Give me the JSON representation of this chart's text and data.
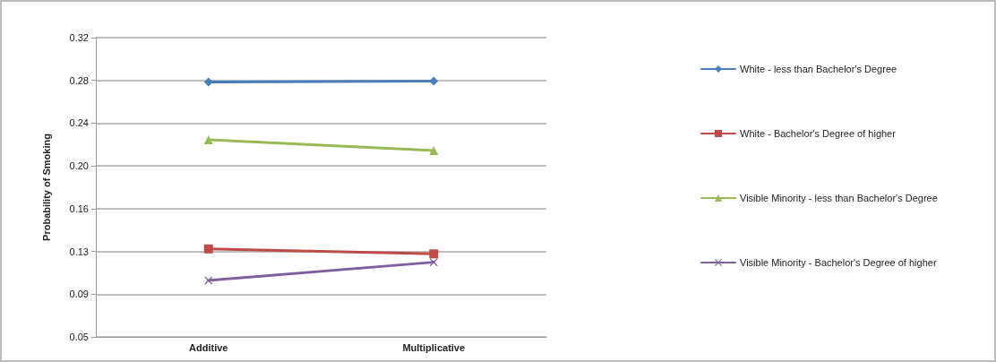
{
  "chart_data": {
    "type": "line",
    "ylabel": "Probability of Smoking",
    "categories": [
      "Additive",
      "Multiplicative"
    ],
    "series": [
      {
        "name": "White - less than Bachelor's Degree",
        "color": "#4a7ebb",
        "marker": "diamond",
        "values": [
          0.2765,
          0.2773
        ]
      },
      {
        "name": "White - Bachelor's Degree of higher",
        "color": "#be4b48",
        "marker": "square",
        "values": [
          0.1282,
          0.1238
        ]
      },
      {
        "name": "Visible Minority - less than Bachelor's Degree",
        "color": "#98b954",
        "marker": "triangle",
        "values": [
          0.2252,
          0.2157
        ]
      },
      {
        "name": "Visible Minority - Bachelor's Degree of higher",
        "color": "#7d5fa0",
        "marker": "cross",
        "values": [
          0.1002,
          0.1164
        ]
      }
    ],
    "ylim": [
      0.05,
      0.316
    ],
    "yticks": [
      0.05,
      {
        "value": 0.088,
        "label": "0.09"
      },
      {
        "value": 0.126,
        "label": "0.13"
      },
      {
        "value": 0.164,
        "label": "0.16"
      },
      {
        "value": 0.202,
        "label": "0.20"
      },
      {
        "value": 0.24,
        "label": "0.24"
      },
      {
        "value": 0.278,
        "label": "0.28"
      },
      {
        "value": 0.316,
        "label": "0.32"
      }
    ],
    "grid": "y",
    "legend": "right"
  }
}
